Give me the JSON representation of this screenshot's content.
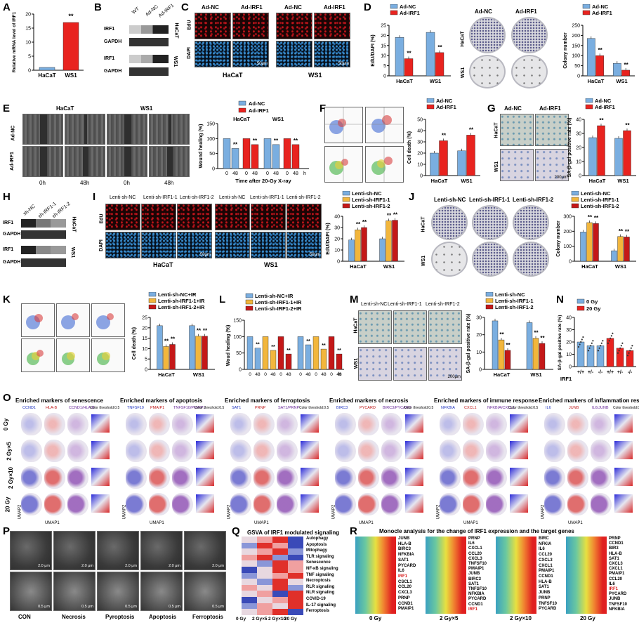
{
  "panels": {
    "A": {
      "label": "A",
      "ylabel": "Relative mRNA level of IRF1",
      "categories": [
        "HaCaT",
        "WS1"
      ],
      "sig": "**"
    },
    "B": {
      "label": "B",
      "lanes": [
        "WT",
        "Ad-NC",
        "Ad-IRF1"
      ],
      "rows": [
        "IRF1",
        "GAPDH",
        "IRF1",
        "GAPDH"
      ],
      "cells": [
        "HaCaT",
        "WS1"
      ]
    },
    "C": {
      "label": "C",
      "cols": [
        "Ad-NC",
        "Ad-IRF1",
        "Ad-NC",
        "Ad-IRF1"
      ],
      "rows": [
        "EdU",
        "DAPI"
      ],
      "scale": "50μm",
      "cells": [
        "HaCaT",
        "WS1"
      ]
    },
    "D": {
      "label": "D",
      "legend": [
        "Ad-NC",
        "Ad-IRF1"
      ],
      "ylabel1": "EdU/DAPI (%)",
      "ylabel2": "Colony number",
      "dish_cols": [
        "Ad-NC",
        "Ad-IRF1"
      ],
      "dish_rows": [
        "HaCaT",
        "WS1"
      ],
      "categories": [
        "HaCaT",
        "WS1"
      ]
    },
    "E": {
      "label": "E",
      "cells": [
        "HaCaT",
        "WS1"
      ],
      "rows": [
        "Ad-NC",
        "Ad-IRF1"
      ],
      "times": [
        "0h",
        "48h",
        "0h",
        "48h"
      ],
      "ylabel": "Wound healing (%)",
      "xlabel": "Time after 20-Gy X-ray",
      "h": "h",
      "legend": [
        "Ad-NC",
        "Ad-IRF1"
      ],
      "cats": [
        "HaCaT",
        "WS1"
      ]
    },
    "F": {
      "label": "F",
      "legend": [
        "Ad-NC",
        "Ad-IRF1"
      ],
      "ylabel": "Cell death (%)",
      "categories": [
        "HaCaT",
        "WS1"
      ]
    },
    "G": {
      "label": "G",
      "cols": [
        "Ad-NC",
        "Ad-IRF1"
      ],
      "rows": [
        "HaCaT",
        "WS1"
      ],
      "legend": [
        "Ad-NC",
        "Ad-IRF1"
      ],
      "ylabel": "SA-β-gal positive rate (%)",
      "categories": [
        "HaCaT",
        "WS1"
      ],
      "scale": "200μm"
    },
    "H": {
      "label": "H",
      "lanes": [
        "sh-NC",
        "sh-IRF1-1",
        "sh-IRF1-2"
      ],
      "rows": [
        "IRF1",
        "GAPDH",
        "IRF1",
        "GAPDH"
      ],
      "cells": [
        "HaCaT",
        "WS1"
      ]
    },
    "I": {
      "label": "I",
      "cols": [
        "Lenti-sh-NC",
        "Lenti-sh-IRF1-1",
        "Lenti-sh-IRF1-2",
        "Lenti-sh-NC",
        "Lenti-sh-IRF1-1",
        "Lenti-sh-IRF1-2"
      ],
      "rows": [
        "EdU",
        "DAPI"
      ],
      "cells": [
        "HaCaT",
        "WS1"
      ],
      "scale": "50μm",
      "legend": [
        "Lenti-sh-NC",
        "Lenti-sh-IRF1-1",
        "Lenti-sh-IRF1-2"
      ],
      "ylabel": "EdU/DAPI (%)"
    },
    "J": {
      "label": "J",
      "cols": [
        "Lenti-sh-NC",
        "Lenti-sh-IRF1-1",
        "Lenti-sh-IRF1-2"
      ],
      "rows": [
        "HaCaT",
        "WS1"
      ],
      "legend": [
        "Lenti-sh-NC",
        "Lenti-sh-IRF1-1",
        "Lenti-sh-IRF1-2"
      ],
      "ylabel": "Colony number"
    },
    "K": {
      "label": "K",
      "legend": [
        "Lenti-sh-NC+IR",
        "Lenti-sh-IRF1-1+IR",
        "Lenti-sh-IRF1-2+IR"
      ],
      "ylabel": "Cell death (%)",
      "categories": [
        "HaCaT",
        "WS1"
      ]
    },
    "L": {
      "label": "L",
      "legend": [
        "Lenti-sh-NC+IR",
        "Lenti-sh-IRF1-1+IR",
        "Lenti-sh-IRF1-2+IR"
      ],
      "ylabel": "Woud healing (%)",
      "h": "h"
    },
    "M": {
      "label": "M",
      "cols": [
        "Lenti-sh-NC",
        "Lenti-sh-IRF1-1",
        "Lenti-sh-IRF1-2"
      ],
      "rows": [
        "HaCaT",
        "WS1"
      ],
      "legend": [
        "Lenti-sh-NC",
        "Lenti-sh-IRF1-1",
        "Lenti-sh-IRF1-2"
      ],
      "ylabel": "SA-β-gal positive rate (%)",
      "scale": "200μm"
    },
    "N": {
      "label": "N",
      "legend": [
        "0 Gy",
        "20 Gy"
      ],
      "ylabel": "SA-β-gal positive rate (%)",
      "xgroup": "IRF1",
      "genotypes": [
        "+/+",
        "+/-",
        "-/-",
        "+/+",
        "+/-",
        "-/-"
      ]
    },
    "O": {
      "label": "O",
      "doses": [
        "0 Gy",
        "2 Gy×5",
        "2 Gy×10",
        "20 Gy"
      ],
      "groups": [
        {
          "title": "Enriched markers of senescence",
          "g1": "CCND1",
          "g2": "HLA-B",
          "mix": "CCND1/HLA-B"
        },
        {
          "title": "Enriched markers of apoptosis",
          "g1": "TNFSF10",
          "g2": "PMAIP1",
          "mix": "TNFSF10/PMAIP1"
        },
        {
          "title": "Enriched markers of ferroptosis",
          "g1": "SAT1",
          "g2": "PRNP",
          "mix": "SAT1/PRNP"
        },
        {
          "title": "Enriched markers of necrosis",
          "g1": "BIRC3",
          "g2": "PYCARD",
          "mix": "BIRC3/PYCARD"
        },
        {
          "title": "Enriched markers of immune response",
          "g1": "NFKBIA",
          "g2": "CXCL1",
          "mix": "NFKBIA/CXCL1"
        },
        {
          "title": "Enriched markers of inflammation response",
          "g1": "IL6",
          "g2": "JUNB",
          "mix": "IL6/JUNB"
        }
      ],
      "threshold": "Color threshold:0.5",
      "umap": "UMAP1",
      "umap2": "UMAP2"
    },
    "P": {
      "label": "P",
      "cols": [
        "CON",
        "Necrosis",
        "Pyroptosis",
        "Apoptosis",
        "Ferroptosis"
      ],
      "scale_top": "2.0 μm",
      "scale_bot": "0.5 μm"
    },
    "Q": {
      "label": "Q",
      "title": "GSVA of IRF1 modulated signaling",
      "rows": [
        "Autophagy",
        "Apoptosis",
        "Mitophagy",
        "TLR signaling",
        "Senescence",
        "NF-κB signaling",
        "TNF signaling",
        "Necroptosis",
        "RLR signaling",
        "NLR signaling",
        "COVID-19",
        "IL-17 signaling",
        "Ferroptosis"
      ],
      "cols": [
        "0 Gy",
        "2 Gy×5",
        "2 Gy×10",
        "20 Gy"
      ]
    },
    "R": {
      "label": "R",
      "title": "Monocle analysis for the change of IRF1 expression and the target genes",
      "blocks": [
        {
          "dose": "0 Gy",
          "genes": [
            "JUNB",
            "HLA-B",
            "BIRC3",
            "NFKBIA",
            "SAT1",
            "PYCARD",
            "IL6",
            "IRF1",
            "CSCL1",
            "CCL20",
            "CXCL3",
            "PRNP",
            "CCND1",
            "PMAIP1"
          ]
        },
        {
          "dose": "2 Gy×5",
          "genes": [
            "PRNP",
            "IL6",
            "CXCL1",
            "CCL20",
            "CXCL3",
            "TNFSF10",
            "PMAIP1",
            "JUNB",
            "BIRC3",
            "SAT1",
            "TNFSF10",
            "NFKBIA",
            "PYCARD",
            "CCND1",
            "IRF1"
          ]
        },
        {
          "dose": "2 Gy×10",
          "genes": [
            "BIRC",
            "NFKIA",
            "IL6",
            "CCL20",
            "CXCL3",
            "CXCL1",
            "PMAIP1",
            "CCND1",
            "HLA-B",
            "SAT1",
            "JUNB",
            "PRNP",
            "TNFSF10",
            "PYCARD"
          ]
        },
        {
          "dose": "20 Gy",
          "genes": [
            "PRNP",
            "CCND1",
            "BIR3",
            "HLA-B",
            "SAT1",
            "CXCL3",
            "CXCL1",
            "PMAIP1",
            "CCL20",
            "IL6",
            "IRF1",
            "PYCARD",
            "JUNB",
            "TNFSF10",
            "NFKBIA"
          ]
        }
      ]
    }
  },
  "colors": {
    "blue": "#7aaee0",
    "red": "#e8231f",
    "orange": "#f2b63c",
    "darkred": "#c41818"
  },
  "chart_data": [
    {
      "type": "bar",
      "panel": "A",
      "categories": [
        "HaCaT",
        "WS1"
      ],
      "values": [
        1.0,
        17.0
      ],
      "ylim": [
        0,
        20
      ],
      "yticks": [
        0,
        5,
        10,
        15,
        20
      ]
    },
    {
      "type": "bar",
      "panel": "D-edu",
      "categories": [
        "HaCaT",
        "WS1"
      ],
      "series": [
        {
          "name": "Ad-NC",
          "values": [
            19,
            21.5
          ]
        },
        {
          "name": "Ad-IRF1",
          "values": [
            8.5,
            11.5
          ]
        }
      ],
      "ylim": [
        0,
        25
      ],
      "yticks": [
        0,
        5,
        10,
        15,
        20,
        25
      ]
    },
    {
      "type": "bar",
      "panel": "D-colony",
      "categories": [
        "HaCaT",
        "WS1"
      ],
      "series": [
        {
          "name": "Ad-NC",
          "values": [
            185,
            62
          ]
        },
        {
          "name": "Ad-IRF1",
          "values": [
            100,
            28
          ]
        }
      ],
      "ylim": [
        0,
        250
      ],
      "yticks": [
        0,
        50,
        100,
        150,
        200,
        250
      ]
    },
    {
      "type": "bar",
      "panel": "E",
      "categories": [
        "0",
        "48",
        "0",
        "48",
        "0",
        "48",
        "0",
        "48"
      ],
      "values": [
        100,
        67,
        100,
        80,
        100,
        80,
        100,
        80
      ],
      "ylim": [
        0,
        150
      ],
      "yticks": [
        0,
        50,
        100,
        150
      ]
    },
    {
      "type": "bar",
      "panel": "F",
      "categories": [
        "HaCaT",
        "WS1"
      ],
      "series": [
        {
          "name": "Ad-NC",
          "values": [
            20,
            22
          ]
        },
        {
          "name": "Ad-IRF1",
          "values": [
            31,
            36
          ]
        }
      ],
      "ylim": [
        0,
        50
      ],
      "yticks": [
        0,
        10,
        20,
        30,
        40,
        50
      ]
    },
    {
      "type": "bar",
      "panel": "G",
      "categories": [
        "HaCaT",
        "WS1"
      ],
      "series": [
        {
          "name": "Ad-NC",
          "values": [
            27,
            26.5
          ]
        },
        {
          "name": "Ad-IRF1",
          "values": [
            35.5,
            32
          ]
        }
      ],
      "ylim": [
        0,
        40
      ],
      "yticks": [
        0,
        10,
        20,
        30,
        40
      ]
    },
    {
      "type": "bar",
      "panel": "I",
      "categories": [
        "HaCaT",
        "WS1"
      ],
      "series": [
        {
          "name": "Lenti-sh-NC",
          "values": [
            19,
            20
          ]
        },
        {
          "name": "Lenti-sh-IRF1-1",
          "values": [
            28,
            36
          ]
        },
        {
          "name": "Lenti-sh-IRF1-2",
          "values": [
            30,
            36.5
          ]
        }
      ],
      "ylim": [
        0,
        40
      ],
      "yticks": [
        0,
        10,
        20,
        30,
        40
      ]
    },
    {
      "type": "bar",
      "panel": "J",
      "categories": [
        "HaCaT",
        "WS1"
      ],
      "series": [
        {
          "name": "Lenti-sh-NC",
          "values": [
            195,
            70
          ]
        },
        {
          "name": "Lenti-sh-IRF1-1",
          "values": [
            258,
            165
          ]
        },
        {
          "name": "Lenti-sh-IRF1-2",
          "values": [
            252,
            162
          ]
        }
      ],
      "ylim": [
        0,
        300
      ],
      "yticks": [
        0,
        100,
        200,
        300
      ]
    },
    {
      "type": "bar",
      "panel": "K",
      "categories": [
        "HaCaT",
        "WS1"
      ],
      "series": [
        {
          "name": "Lenti-sh-NC+IR",
          "values": [
            21,
            21
          ]
        },
        {
          "name": "Lenti-sh-IRF1-1+IR",
          "values": [
            11,
            16
          ]
        },
        {
          "name": "Lenti-sh-IRF1-2+IR",
          "values": [
            12,
            16
          ]
        }
      ],
      "ylim": [
        0,
        25
      ],
      "yticks": [
        0,
        5,
        10,
        15,
        20,
        25
      ]
    },
    {
      "type": "bar",
      "panel": "L",
      "categories": [
        "0",
        "48",
        "0",
        "48",
        "0",
        "48",
        "0",
        "48",
        "0",
        "48",
        "0",
        "48"
      ],
      "values": [
        100,
        65,
        100,
        58,
        100,
        47,
        100,
        75,
        100,
        62,
        100,
        47
      ],
      "ylim": [
        0,
        150
      ],
      "yticks": [
        0,
        50,
        100,
        150
      ]
    },
    {
      "type": "bar",
      "panel": "M",
      "categories": [
        "HaCaT",
        "WS1"
      ],
      "series": [
        {
          "name": "Lenti-sh-NC",
          "values": [
            28,
            27
          ]
        },
        {
          "name": "Lenti-sh-IRF1-1",
          "values": [
            17,
            18
          ]
        },
        {
          "name": "Lenti-sh-IRF1-2",
          "values": [
            11,
            15
          ]
        }
      ],
      "ylim": [
        0,
        30
      ],
      "yticks": [
        0,
        10,
        20,
        30
      ]
    },
    {
      "type": "bar",
      "panel": "N",
      "categories": [
        "+/+",
        "+/-",
        "-/-",
        "+/+",
        "+/-",
        "-/-"
      ],
      "values": [
        20,
        17,
        17,
        23,
        15,
        13
      ],
      "ylim": [
        0,
        40
      ],
      "yticks": [
        0,
        10,
        20,
        30,
        40
      ]
    }
  ]
}
